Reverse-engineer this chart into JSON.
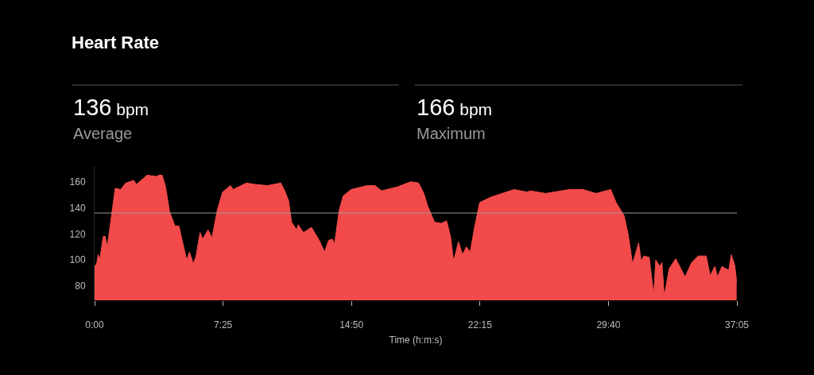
{
  "chart_data": {
    "type": "area",
    "title": "Heart Rate",
    "xlabel": "Time (h:m:s)",
    "annotations": [
      "136 bpm",
      "Average",
      "166 bpm",
      "Maximum"
    ],
    "x": [
      0,
      0.12,
      0.2,
      0.31,
      0.5,
      0.61,
      0.73,
      1.04,
      1.19,
      1.5,
      1.8,
      2.26,
      2.42,
      3.03,
      3.57,
      3.72,
      3.9,
      4.1,
      4.33,
      4.64,
      4.87,
      5.02,
      5.32,
      5.48,
      5.7,
      5.86,
      6.09,
      6.24,
      6.55,
      6.78,
      7.08,
      7.39,
      7.85,
      8.0,
      8.77,
      9.22,
      9.99,
      10.75,
      10.98,
      11.21,
      11.37,
      11.67,
      11.75,
      12.06,
      12.52,
      12.97,
      13.28,
      13.51,
      13.74,
      13.85,
      14.12,
      14.35,
      14.81,
      15.73,
      16.19,
      16.57,
      17.49,
      18.25,
      18.71,
      19.01,
      19.24,
      19.63,
      20.01,
      20.32,
      20.55,
      20.73,
      21.01,
      21.24,
      21.46,
      21.69,
      21.92,
      22.23,
      22.84,
      24.22,
      24.98,
      25.14,
      26.05,
      27.43,
      28.19,
      28.96,
      29.8,
      30.11,
      30.57,
      30.8,
      31.06,
      31.41,
      31.56,
      31.71,
      32.02,
      32.28,
      32.4,
      32.63,
      32.76,
      32.89,
      33.17,
      33.55,
      34.09,
      34.47,
      34.85,
      35.31,
      35.54,
      35.81,
      35.97,
      36.22,
      36.61,
      36.76,
      36.96,
      37.07
    ],
    "series": [
      {
        "color": "#f24a4a",
        "values": [
          95,
          97,
          104,
          101,
          118,
          118,
          110,
          140,
          155,
          154,
          159,
          161,
          158,
          165,
          164,
          165,
          165,
          156,
          137,
          126,
          126,
          117,
          100,
          106,
          97,
          103,
          121,
          116,
          123,
          117,
          138,
          152,
          157,
          154,
          159,
          158,
          157,
          159,
          153,
          145,
          129,
          123,
          127,
          121,
          125,
          115,
          106,
          115,
          116,
          112,
          138,
          149,
          154,
          157,
          157,
          153,
          156,
          160,
          159,
          151,
          141,
          129,
          128,
          130,
          118,
          99,
          114,
          104,
          110,
          106,
          124,
          144,
          148,
          154,
          152,
          153,
          151,
          154,
          154,
          151,
          154,
          144,
          134,
          120,
          97,
          113,
          99,
          103,
          102,
          73,
          100,
          95,
          98,
          72,
          93,
          101,
          87,
          98,
          103,
          103,
          88,
          95,
          87,
          95,
          92,
          104,
          96,
          83
        ]
      }
    ],
    "xlim": [
      0,
      37.0833
    ],
    "ylim": [
      69,
      172
    ],
    "xticks": [
      {
        "value": 0,
        "label": "0:00"
      },
      {
        "value": 7.41667,
        "label": "7:25"
      },
      {
        "value": 14.8333,
        "label": "14:50"
      },
      {
        "value": 22.25,
        "label": "22:15"
      },
      {
        "value": 29.6667,
        "label": "29:40"
      },
      {
        "value": 37.0833,
        "label": "37:05"
      }
    ],
    "yticks": [
      80,
      100,
      120,
      140,
      160
    ],
    "ref_lines": [
      {
        "axis": "y",
        "value": 136,
        "color": "#9a9a9a"
      }
    ],
    "grid": false,
    "marker": "none"
  }
}
